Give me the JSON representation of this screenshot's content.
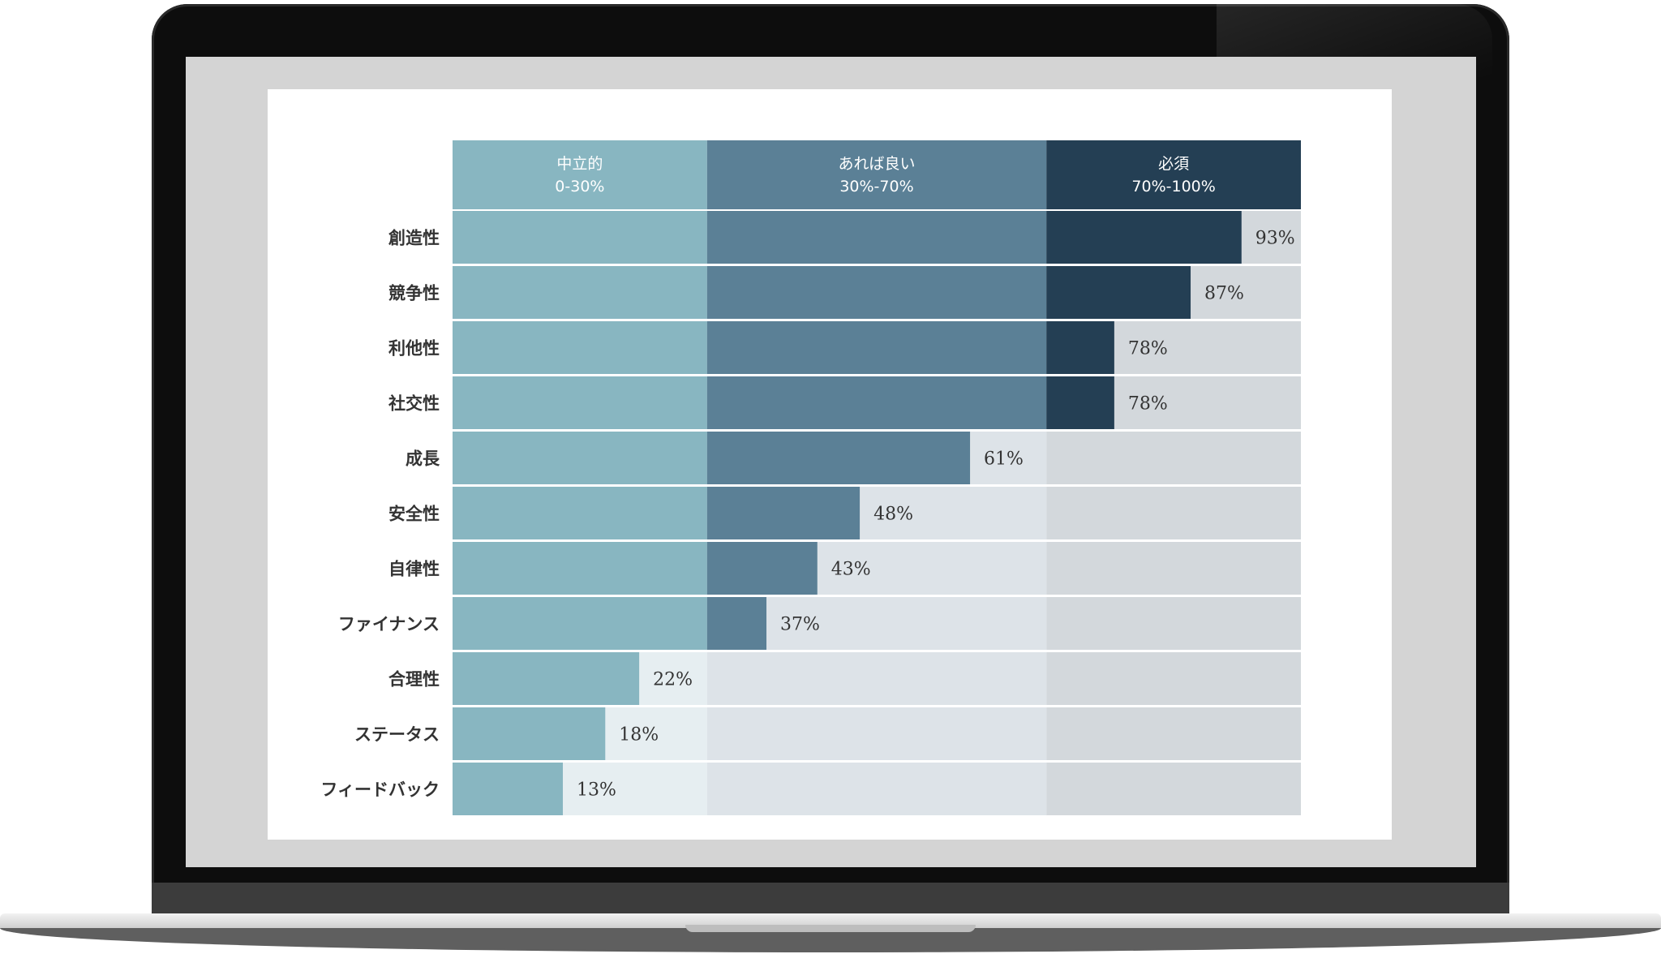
{
  "chart_data": {
    "type": "bar",
    "orientation": "horizontal",
    "title": "",
    "xlim": [
      0,
      100
    ],
    "bands": [
      {
        "name": "中立的",
        "range_label": "0-30%",
        "from": 0,
        "to": 30,
        "color": "#88b6c1",
        "track": "#e6eef1"
      },
      {
        "name": "あれば良い",
        "range_label": "30%-70%",
        "from": 30,
        "to": 70,
        "color": "#5b8096",
        "track": "#dde3e8"
      },
      {
        "name": "必須",
        "range_label": "70%-100%",
        "from": 70,
        "to": 100,
        "color": "#243f54",
        "track": "#d3d8dc"
      }
    ],
    "categories": [
      "創造性",
      "競争性",
      "利他性",
      "社交性",
      "成長",
      "安全性",
      "自律性",
      "ファイナンス",
      "合理性",
      "ステータス",
      "フィードバック"
    ],
    "values": [
      93,
      87,
      78,
      78,
      61,
      48,
      43,
      37,
      22,
      18,
      13
    ],
    "value_labels": [
      "93%",
      "87%",
      "78%",
      "78%",
      "61%",
      "48%",
      "43%",
      "37%",
      "22%",
      "18%",
      "13%"
    ]
  }
}
